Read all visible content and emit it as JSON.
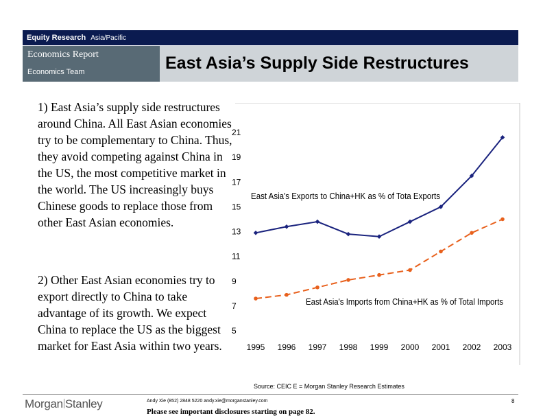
{
  "header": {
    "section": "Equity Research",
    "region": "Asia/Pacific",
    "report": "Economics Report",
    "team": "Economics Team",
    "title": "East Asia’s Supply Side Restructures"
  },
  "body": {
    "para1": "1) East Asia’s supply side restructures around China. All East Asian economies try to be complementary to China. Thus, they avoid competing against China in the US, the most competitive market in the world. The US increasingly buys Chinese goods to replace those from other East Asian economies.",
    "para2": "2) Other East Asian economies try to export directly to China to take advantage of its growth. We expect China to replace the US as the biggest market for East Asia within two years."
  },
  "chart_data": {
    "type": "line",
    "x": [
      "1995",
      "1996",
      "1997",
      "1998",
      "1999",
      "2000",
      "2001",
      "2002",
      "2003"
    ],
    "series": [
      {
        "name": "East Asia's Exports to China+HK as % of Tota Exports",
        "values": [
          12.9,
          13.4,
          13.8,
          12.8,
          12.6,
          13.8,
          15.0,
          17.5,
          20.6
        ],
        "color": "#1a237e",
        "style": "solid"
      },
      {
        "name": "East Asia's Imports from China+HK as % of Total Imports",
        "values": [
          7.6,
          7.9,
          8.5,
          9.1,
          9.5,
          9.9,
          11.4,
          12.9,
          14.0
        ],
        "color": "#e8601c",
        "style": "dashed"
      }
    ],
    "y_ticks": [
      21,
      19,
      17,
      15,
      13,
      11,
      9,
      7,
      5
    ],
    "ylim": [
      5,
      21
    ],
    "grid": false
  },
  "footer": {
    "source": "Source: CEIC E = Morgan Stanley Research Estimates",
    "logo_left": "Morgan",
    "logo_right": "Stanley",
    "contact": "Andy Xie (852) 2848 5220 andy.xie@morganstanley.com",
    "disclaimer": "Please see important disclosures starting on page 82.",
    "page": "8"
  }
}
